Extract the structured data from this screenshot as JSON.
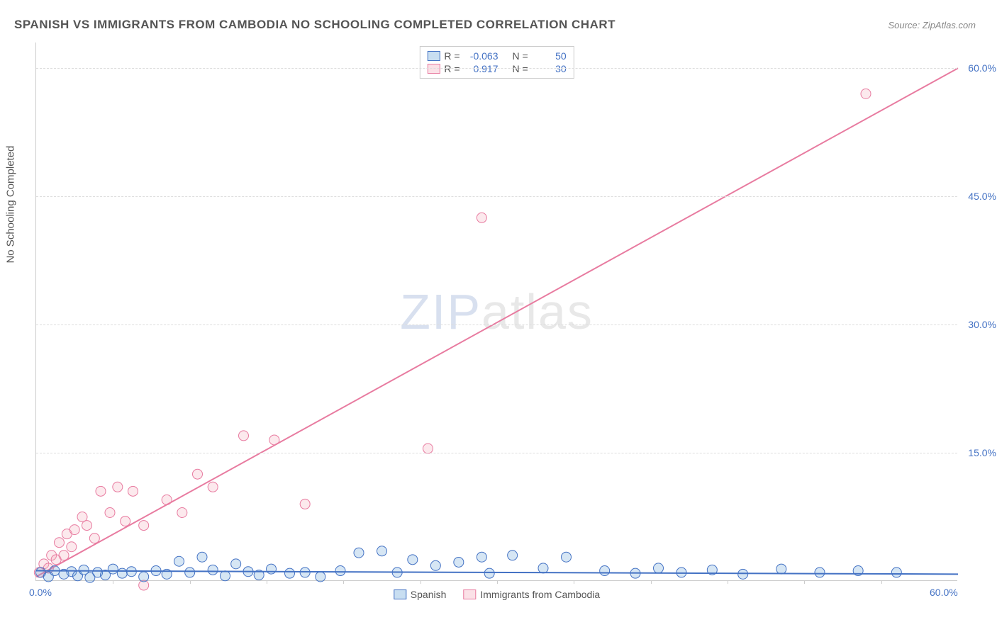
{
  "title": "SPANISH VS IMMIGRANTS FROM CAMBODIA NO SCHOOLING COMPLETED CORRELATION CHART",
  "source": "Source: ZipAtlas.com",
  "y_axis_label": "No Schooling Completed",
  "watermark_zip": "ZIP",
  "watermark_atlas": "atlas",
  "chart": {
    "type": "scatter",
    "xlim": [
      0,
      60
    ],
    "ylim": [
      0,
      63
    ],
    "x_ticks": [
      0,
      60
    ],
    "x_tick_labels": [
      "0.0%",
      "60.0%"
    ],
    "x_minor_ticks": [
      5,
      10,
      15,
      20,
      25,
      30,
      35,
      40,
      45,
      50,
      55
    ],
    "y_gridlines": [
      15,
      30,
      45,
      60
    ],
    "y_tick_labels": [
      "15.0%",
      "30.0%",
      "45.0%",
      "60.0%"
    ],
    "background_color": "#ffffff",
    "grid_color": "#dddddd",
    "axis_color": "#cccccc",
    "tick_label_color": "#4472c4",
    "tick_label_fontsize": 14,
    "marker_radius": 7,
    "marker_fill_opacity": 0.25,
    "line_width": 2
  },
  "series": {
    "spanish": {
      "label": "Spanish",
      "color": "#5b9bd5",
      "stroke": "#4472c4",
      "R": "-0.063",
      "N": "50",
      "trend": {
        "x1": 0,
        "y1": 1.2,
        "x2": 60,
        "y2": 0.8
      },
      "points": [
        [
          0.3,
          1.0
        ],
        [
          0.8,
          0.5
        ],
        [
          1.2,
          1.2
        ],
        [
          1.8,
          0.8
        ],
        [
          2.3,
          1.1
        ],
        [
          2.7,
          0.6
        ],
        [
          3.1,
          1.3
        ],
        [
          3.5,
          0.4
        ],
        [
          4.0,
          1.0
        ],
        [
          4.5,
          0.7
        ],
        [
          5.0,
          1.4
        ],
        [
          5.6,
          0.9
        ],
        [
          6.2,
          1.1
        ],
        [
          7.0,
          0.5
        ],
        [
          7.8,
          1.2
        ],
        [
          8.5,
          0.8
        ],
        [
          9.3,
          2.3
        ],
        [
          10.0,
          1.0
        ],
        [
          10.8,
          2.8
        ],
        [
          11.5,
          1.3
        ],
        [
          12.3,
          0.6
        ],
        [
          13.0,
          2.0
        ],
        [
          13.8,
          1.1
        ],
        [
          14.5,
          0.7
        ],
        [
          15.3,
          1.4
        ],
        [
          16.5,
          0.9
        ],
        [
          17.5,
          1.0
        ],
        [
          18.5,
          0.5
        ],
        [
          19.8,
          1.2
        ],
        [
          21.0,
          3.3
        ],
        [
          22.5,
          3.5
        ],
        [
          23.5,
          1.0
        ],
        [
          24.5,
          2.5
        ],
        [
          26.0,
          1.8
        ],
        [
          27.5,
          2.2
        ],
        [
          29.0,
          2.8
        ],
        [
          29.5,
          0.9
        ],
        [
          31.0,
          3.0
        ],
        [
          33.0,
          1.5
        ],
        [
          34.5,
          2.8
        ],
        [
          37.0,
          1.2
        ],
        [
          39.0,
          0.9
        ],
        [
          40.5,
          1.5
        ],
        [
          42.0,
          1.0
        ],
        [
          44.0,
          1.3
        ],
        [
          46.0,
          0.8
        ],
        [
          48.5,
          1.4
        ],
        [
          51.0,
          1.0
        ],
        [
          53.5,
          1.2
        ],
        [
          56.0,
          1.0
        ]
      ]
    },
    "cambodia": {
      "label": "Immigrants from Cambodia",
      "color": "#f4a6b8",
      "stroke": "#e87ba0",
      "R": "0.917",
      "N": "30",
      "trend": {
        "x1": 0,
        "y1": 0.5,
        "x2": 60,
        "y2": 60
      },
      "points": [
        [
          0.2,
          1.0
        ],
        [
          0.5,
          2.0
        ],
        [
          0.8,
          1.5
        ],
        [
          1.0,
          3.0
        ],
        [
          1.3,
          2.5
        ],
        [
          1.5,
          4.5
        ],
        [
          1.8,
          3.0
        ],
        [
          2.0,
          5.5
        ],
        [
          2.3,
          4.0
        ],
        [
          2.5,
          6.0
        ],
        [
          3.0,
          7.5
        ],
        [
          3.3,
          6.5
        ],
        [
          3.8,
          5.0
        ],
        [
          4.2,
          10.5
        ],
        [
          4.8,
          8.0
        ],
        [
          5.3,
          11.0
        ],
        [
          5.8,
          7.0
        ],
        [
          6.3,
          10.5
        ],
        [
          7.0,
          6.5
        ],
        [
          7.0,
          -0.5
        ],
        [
          8.5,
          9.5
        ],
        [
          9.5,
          8.0
        ],
        [
          10.5,
          12.5
        ],
        [
          11.5,
          11.0
        ],
        [
          13.5,
          17.0
        ],
        [
          15.5,
          16.5
        ],
        [
          17.5,
          9.0
        ],
        [
          25.5,
          15.5
        ],
        [
          29.0,
          42.5
        ],
        [
          54.0,
          57.0
        ]
      ]
    }
  },
  "legend_box": {
    "rows": [
      {
        "swatch": "spanish",
        "r_label": "R =",
        "n_label": "N ="
      },
      {
        "swatch": "cambodia",
        "r_label": "R =",
        "n_label": "N ="
      }
    ]
  }
}
